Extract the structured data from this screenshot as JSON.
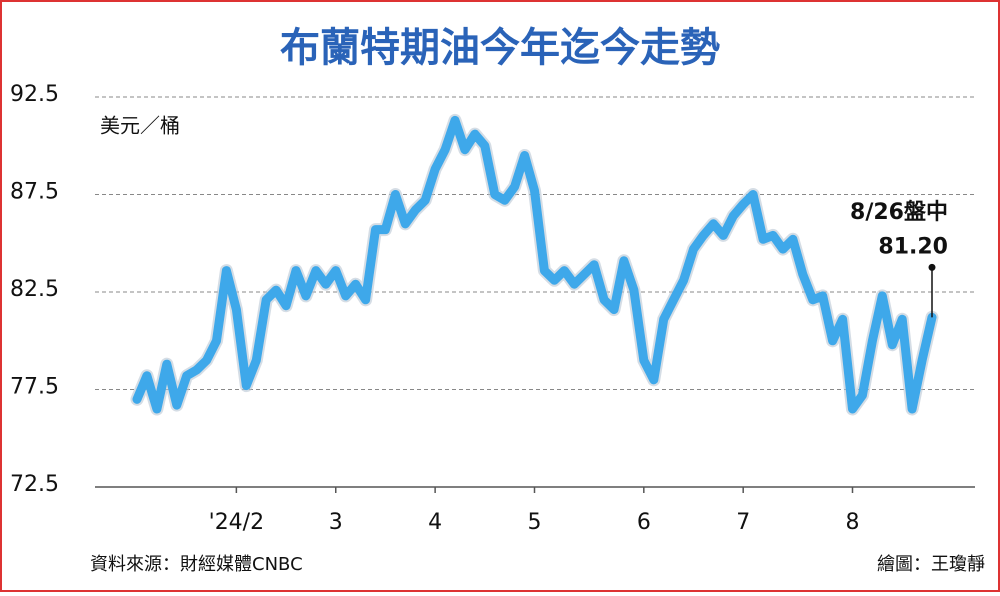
{
  "chart_data": {
    "type": "line",
    "title": "布蘭特期油今年迄今走勢",
    "y_label": "美元／桶",
    "source": "資料來源：財經媒體CNBC",
    "credit": "繪圖：王瓊靜",
    "annotation": "8/26盤中",
    "categories": [
      null,
      null,
      null,
      null,
      null,
      null,
      null,
      null,
      null,
      null,
      "'24/2",
      null,
      null,
      null,
      null,
      null,
      null,
      null,
      null,
      null,
      "3",
      null,
      null,
      null,
      null,
      null,
      null,
      null,
      null,
      null,
      "4",
      null,
      null,
      null,
      null,
      null,
      null,
      null,
      null,
      null,
      "5",
      null,
      null,
      null,
      null,
      null,
      null,
      null,
      null,
      null,
      null,
      "6",
      null,
      null,
      null,
      null,
      null,
      null,
      null,
      null,
      null,
      "7",
      null,
      null,
      null,
      null,
      null,
      null,
      null,
      null,
      null,
      null,
      "8",
      null,
      null,
      null,
      null,
      null,
      null,
      null,
      null
    ],
    "values": [
      77.0,
      78.2,
      76.5,
      78.8,
      76.7,
      78.2,
      78.5,
      79.0,
      80.0,
      83.6,
      81.6,
      77.7,
      79.0,
      82.1,
      82.6,
      81.8,
      83.6,
      82.3,
      83.6,
      82.9,
      83.6,
      82.3,
      82.9,
      82.1,
      85.7,
      85.7,
      87.5,
      86.0,
      86.7,
      87.2,
      88.8,
      89.8,
      91.3,
      89.8,
      90.6,
      90.0,
      87.5,
      87.2,
      87.9,
      89.5,
      87.7,
      83.6,
      83.1,
      83.6,
      82.9,
      83.4,
      83.9,
      82.1,
      81.6,
      84.1,
      82.6,
      79.0,
      78.0,
      81.1,
      82.1,
      83.1,
      84.7,
      85.4,
      86.0,
      85.4,
      86.4,
      87.0,
      87.5,
      85.2,
      85.4,
      84.7,
      85.2,
      83.4,
      82.1,
      82.3,
      80.0,
      81.1,
      76.5,
      77.2,
      80.0,
      82.3,
      79.8,
      81.1,
      76.5,
      79.0,
      81.2
    ],
    "value_labels": [
      null,
      null,
      null,
      null,
      null,
      null,
      null,
      null,
      null,
      null,
      null,
      null,
      null,
      null,
      null,
      null,
      null,
      null,
      null,
      null,
      null,
      null,
      null,
      null,
      null,
      null,
      null,
      null,
      null,
      null,
      null,
      null,
      null,
      null,
      null,
      null,
      null,
      null,
      null,
      null,
      null,
      null,
      null,
      null,
      null,
      null,
      null,
      null,
      null,
      null,
      null,
      null,
      null,
      null,
      null,
      null,
      null,
      null,
      null,
      null,
      null,
      null,
      null,
      null,
      null,
      null,
      null,
      null,
      null,
      null,
      null,
      null,
      null,
      null,
      null,
      null,
      null,
      null,
      null,
      null,
      "81.20"
    ],
    "color": "#3ea8ea",
    "ylim": [
      72.5,
      92.5
    ],
    "yticks": [
      72.5,
      77.5,
      82.5,
      87.5,
      92.5
    ],
    "grid": true
  }
}
